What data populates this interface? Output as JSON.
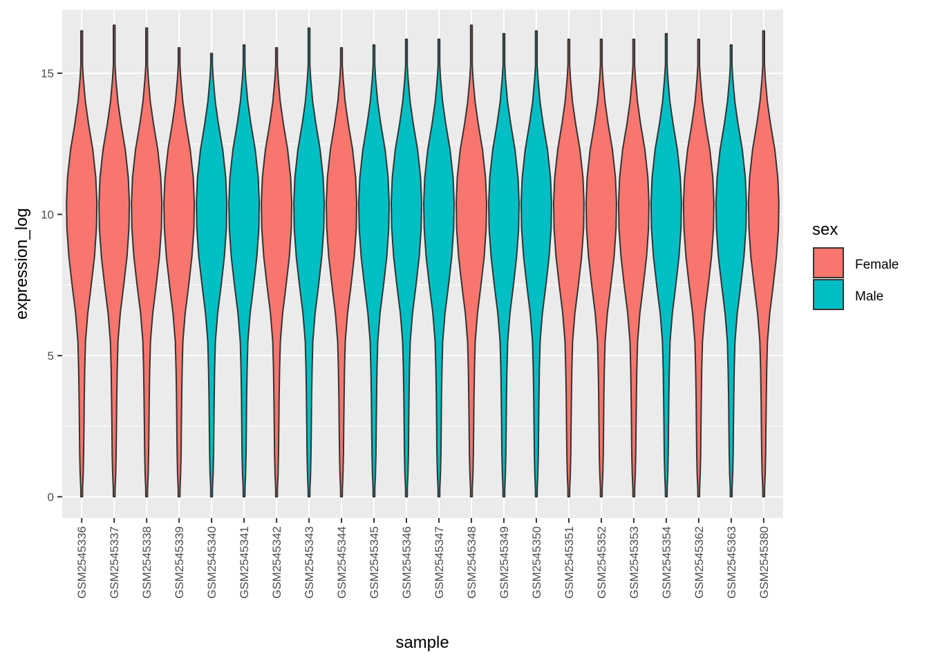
{
  "chart_data": {
    "type": "violin",
    "xlabel": "sample",
    "ylabel": "expression_log",
    "ylim": [
      -0.75,
      17.25
    ],
    "yticks": [
      0,
      5,
      10,
      15
    ],
    "grid": true,
    "legend": {
      "title": "sex",
      "placement": "right",
      "items": [
        {
          "label": "Female",
          "color": "#F8766D"
        },
        {
          "label": "Male",
          "color": "#00BFC4"
        }
      ]
    },
    "samples": [
      {
        "name": "GSM2545336",
        "sex": "Female",
        "min": 0,
        "max": 16.5,
        "median": 10.4
      },
      {
        "name": "GSM2545337",
        "sex": "Female",
        "min": 0,
        "max": 16.7,
        "median": 10.4
      },
      {
        "name": "GSM2545338",
        "sex": "Female",
        "min": 0,
        "max": 16.6,
        "median": 10.4
      },
      {
        "name": "GSM2545339",
        "sex": "Female",
        "min": 0,
        "max": 15.9,
        "median": 10.4
      },
      {
        "name": "GSM2545340",
        "sex": "Male",
        "min": 0,
        "max": 15.7,
        "median": 10.4
      },
      {
        "name": "GSM2545341",
        "sex": "Male",
        "min": 0,
        "max": 16.0,
        "median": 10.4
      },
      {
        "name": "GSM2545342",
        "sex": "Female",
        "min": 0,
        "max": 15.9,
        "median": 10.4
      },
      {
        "name": "GSM2545343",
        "sex": "Male",
        "min": 0,
        "max": 16.6,
        "median": 10.4
      },
      {
        "name": "GSM2545344",
        "sex": "Female",
        "min": 0,
        "max": 15.9,
        "median": 10.4
      },
      {
        "name": "GSM2545345",
        "sex": "Male",
        "min": 0,
        "max": 16.0,
        "median": 10.4
      },
      {
        "name": "GSM2545346",
        "sex": "Male",
        "min": 0,
        "max": 16.2,
        "median": 10.4
      },
      {
        "name": "GSM2545347",
        "sex": "Male",
        "min": 0,
        "max": 16.2,
        "median": 10.4
      },
      {
        "name": "GSM2545348",
        "sex": "Female",
        "min": 0,
        "max": 16.7,
        "median": 10.4
      },
      {
        "name": "GSM2545349",
        "sex": "Male",
        "min": 0,
        "max": 16.4,
        "median": 10.4
      },
      {
        "name": "GSM2545350",
        "sex": "Male",
        "min": 0,
        "max": 16.5,
        "median": 10.4
      },
      {
        "name": "GSM2545351",
        "sex": "Female",
        "min": 0,
        "max": 16.2,
        "median": 10.4
      },
      {
        "name": "GSM2545352",
        "sex": "Female",
        "min": 0,
        "max": 16.2,
        "median": 10.4
      },
      {
        "name": "GSM2545353",
        "sex": "Female",
        "min": 0,
        "max": 16.2,
        "median": 10.4
      },
      {
        "name": "GSM2545354",
        "sex": "Male",
        "min": 0,
        "max": 16.4,
        "median": 10.4
      },
      {
        "name": "GSM2545362",
        "sex": "Female",
        "min": 0,
        "max": 16.2,
        "median": 10.4
      },
      {
        "name": "GSM2545363",
        "sex": "Male",
        "min": 0,
        "max": 16.0,
        "median": 10.4
      },
      {
        "name": "GSM2545380",
        "sex": "Female",
        "min": 0,
        "max": 16.5,
        "median": 10.4
      }
    ]
  }
}
